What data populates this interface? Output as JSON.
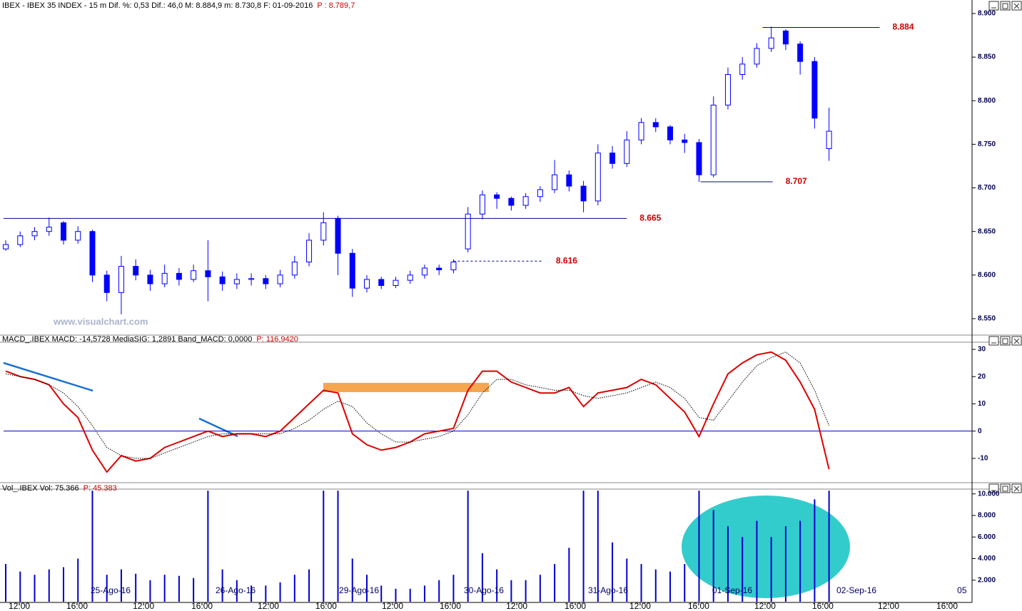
{
  "chart_data": [
    {
      "type": "candlestick",
      "title": "IBEX - IBEX 35 INDEX - 15 m  Dif. %: 0,53  Dif.: 46,0  M: 8.884,9  m: 8.730,8  F: 01-09-2016",
      "subtitle": "P : 8.789,7",
      "watermark": "www.visualchart.com",
      "color": "#0000ff",
      "xlim": [
        -0.15,
        66.9
      ],
      "ylim": [
        8.5328,
        8.9155
      ],
      "yticks": [
        {
          "value": 8.9,
          "label": "8.900"
        },
        {
          "value": 8.85,
          "label": "8.850"
        },
        {
          "value": 8.8,
          "label": "8.800"
        },
        {
          "value": 8.75,
          "label": "8.750"
        },
        {
          "value": 8.7,
          "label": "8.700"
        },
        {
          "value": 8.65,
          "label": "8.650"
        },
        {
          "value": 8.6,
          "label": "8.600"
        },
        {
          "value": 8.55,
          "label": "8.550"
        }
      ],
      "open": [
        8.63,
        8.635,
        8.645,
        8.65,
        8.66,
        8.64,
        8.65,
        8.6,
        8.58,
        8.61,
        8.6,
        8.59,
        8.602,
        8.595,
        8.605,
        8.598,
        8.59,
        8.595,
        8.596,
        8.59,
        8.6,
        8.615,
        8.64,
        8.665,
        8.625,
        8.585,
        8.595,
        8.588,
        8.594,
        8.6,
        8.608,
        8.606,
        8.63,
        8.67,
        8.692,
        8.688,
        8.68,
        8.69,
        8.698,
        8.715,
        8.702,
        8.685,
        8.74,
        8.728,
        8.755,
        8.775,
        8.77,
        8.755,
        8.752,
        8.715,
        8.795,
        8.83,
        8.842,
        8.86,
        8.88,
        8.865,
        8.845,
        8.745
      ],
      "high": [
        8.64,
        8.65,
        8.655,
        8.666,
        8.662,
        8.656,
        8.652,
        8.605,
        8.622,
        8.618,
        8.606,
        8.612,
        8.608,
        8.612,
        8.64,
        8.604,
        8.602,
        8.602,
        8.6,
        8.606,
        8.622,
        8.648,
        8.672,
        8.668,
        8.63,
        8.6,
        8.598,
        8.598,
        8.605,
        8.612,
        8.612,
        8.618,
        8.678,
        8.697,
        8.695,
        8.69,
        8.694,
        8.702,
        8.732,
        8.72,
        8.708,
        8.75,
        8.748,
        8.765,
        8.78,
        8.78,
        8.772,
        8.762,
        8.756,
        8.805,
        8.838,
        8.85,
        8.866,
        8.885,
        8.882,
        8.868,
        8.85,
        8.792
      ],
      "low": [
        8.628,
        8.632,
        8.64,
        8.645,
        8.635,
        8.636,
        8.592,
        8.57,
        8.555,
        8.594,
        8.582,
        8.586,
        8.588,
        8.592,
        8.57,
        8.582,
        8.584,
        8.588,
        8.584,
        8.586,
        8.596,
        8.61,
        8.634,
        8.6,
        8.575,
        8.58,
        8.584,
        8.585,
        8.59,
        8.596,
        8.6,
        8.602,
        8.626,
        8.664,
        8.676,
        8.674,
        8.676,
        8.684,
        8.694,
        8.696,
        8.672,
        8.68,
        8.722,
        8.724,
        8.75,
        8.764,
        8.75,
        8.74,
        8.707,
        8.712,
        8.79,
        8.824,
        8.838,
        8.856,
        8.858,
        8.83,
        8.768,
        8.731
      ],
      "close": [
        8.635,
        8.645,
        8.65,
        8.655,
        8.64,
        8.65,
        8.6,
        8.58,
        8.61,
        8.6,
        8.59,
        8.602,
        8.595,
        8.605,
        8.598,
        8.59,
        8.595,
        8.596,
        8.59,
        8.6,
        8.615,
        8.64,
        8.66,
        8.625,
        8.585,
        8.595,
        8.588,
        8.594,
        8.6,
        8.608,
        8.606,
        8.615,
        8.67,
        8.692,
        8.688,
        8.68,
        8.69,
        8.698,
        8.715,
        8.702,
        8.685,
        8.74,
        8.728,
        8.755,
        8.775,
        8.77,
        8.755,
        8.752,
        8.715,
        8.795,
        8.83,
        8.842,
        8.86,
        8.872,
        8.865,
        8.845,
        8.78,
        8.765
      ],
      "levels": [
        {
          "value": 8.884,
          "label": "8.884",
          "x": [
            52.4,
            60.5
          ],
          "color": "#0000aa",
          "dashed": false
        },
        {
          "value": 8.707,
          "label": "8.707",
          "x": [
            48.1,
            53.1
          ],
          "color": "#0000aa",
          "dashed": false
        },
        {
          "value": 8.665,
          "label": "8.665",
          "x": [
            -0.15,
            43.0
          ],
          "color": "#0000aa",
          "dashed": false
        },
        {
          "value": 8.616,
          "label": "8.616",
          "x": [
            31.0,
            37.2
          ],
          "color": "#0000aa",
          "dashed": true
        }
      ],
      "level_label_color": "#cc0000"
    },
    {
      "type": "line",
      "title": "MACD_.IBEX MACD: -14,5728  MediaSIG: 1,2891  Band_MACD: 0,0000",
      "subtitle": "P: 116,9420",
      "xlim": [
        -0.15,
        66.9
      ],
      "ylim": [
        -18.4,
        32.1
      ],
      "yticks": [
        30,
        20,
        10,
        0,
        -10
      ],
      "reference_line": 0,
      "series": [
        {
          "color": "#dd0000",
          "dashed": false,
          "values": [
            22,
            20,
            19,
            17,
            10,
            5,
            -7,
            -15,
            -9,
            -11,
            -10,
            -6,
            -4,
            -2,
            0,
            -2,
            -1,
            -1,
            -2,
            0,
            5,
            10,
            15,
            14,
            -1,
            -5,
            -7,
            -6,
            -4,
            -1,
            0,
            1,
            15,
            22,
            22,
            18,
            16,
            14,
            14,
            16,
            9,
            14,
            15,
            16,
            19,
            17,
            12,
            7,
            -2,
            10,
            21,
            25,
            28,
            29,
            26,
            18,
            8,
            -14
          ]
        },
        {
          "color": "#000000",
          "dashed": true,
          "values": [
            21,
            20,
            19,
            17,
            14,
            9,
            2,
            -6,
            -9,
            -10,
            -10,
            -8,
            -6,
            -4,
            -2,
            -1,
            -1,
            -1,
            -1,
            -1,
            1,
            4,
            8,
            11,
            9,
            3,
            -1,
            -4,
            -4,
            -3,
            -2,
            0,
            6,
            14,
            19,
            19,
            17,
            16,
            15,
            15,
            13,
            12,
            13,
            14,
            16,
            18,
            16,
            12,
            5,
            4,
            11,
            18,
            24,
            27,
            29,
            25,
            15,
            2
          ]
        }
      ]
    },
    {
      "type": "bar",
      "title": "Vol_.IBEX Vol: 75.366",
      "subtitle": "P: 45.383",
      "color": "#0000cc",
      "xlim": [
        -0.15,
        66.9
      ],
      "ylim": [
        0,
        10314
      ],
      "yticks": [
        {
          "value": 10000,
          "label": "10.000"
        },
        {
          "value": 8000,
          "label": "8.000"
        },
        {
          "value": 6000,
          "label": "6.000"
        },
        {
          "value": 4000,
          "label": "4.000"
        },
        {
          "value": 2000,
          "label": "2.000"
        }
      ],
      "values": [
        3500,
        2800,
        2500,
        3000,
        3200,
        4000,
        10300,
        2500,
        3000,
        2600,
        2000,
        2500,
        2400,
        2200,
        10300,
        3000,
        2000,
        1500,
        1500,
        1800,
        2500,
        3000,
        10300,
        10300,
        4000,
        2500,
        1500,
        1200,
        1200,
        1500,
        2000,
        2500,
        10300,
        4500,
        3000,
        2000,
        2000,
        2500,
        3500,
        5000,
        10300,
        10300,
        5500,
        4000,
        3500,
        3000,
        2800,
        3500,
        10300,
        8500,
        7000,
        6000,
        7500,
        6000,
        7000,
        7500,
        9500,
        10300
      ],
      "xticks": [
        {
          "value": 0.94,
          "label": "12:00"
        },
        {
          "value": 4.94,
          "label": "16:00"
        },
        {
          "value": 9.54,
          "label": "12:00"
        },
        {
          "value": 13.59,
          "label": "16:00"
        },
        {
          "value": 18.18,
          "label": "12:00"
        },
        {
          "value": 22.18,
          "label": "16:00"
        },
        {
          "value": 26.78,
          "label": "12:00"
        },
        {
          "value": 30.78,
          "label": "16:00"
        },
        {
          "value": 35.38,
          "label": "12:00"
        },
        {
          "value": 39.43,
          "label": "16:00"
        },
        {
          "value": 43.92,
          "label": "12:00"
        },
        {
          "value": 47.97,
          "label": "16:00"
        },
        {
          "value": 52.57,
          "label": "12:00"
        },
        {
          "value": 56.57,
          "label": "16:00"
        },
        {
          "value": 61.12,
          "label": "12:00"
        },
        {
          "value": 65.17,
          "label": "16:00"
        }
      ],
      "date_labels": [
        {
          "value": 7.26,
          "label": "25-Ago-16"
        },
        {
          "value": 15.91,
          "label": "26-Ago-16"
        },
        {
          "value": 24.46,
          "label": "29-Ago-16"
        },
        {
          "value": 33.1,
          "label": "30-Ago-16"
        },
        {
          "value": 41.7,
          "label": "31-Ago-16"
        },
        {
          "value": 50.3,
          "label": "01-Sep-16"
        },
        {
          "value": 58.9,
          "label": "02-Sep-16"
        },
        {
          "value": 66.2,
          "label": "05"
        }
      ]
    }
  ]
}
